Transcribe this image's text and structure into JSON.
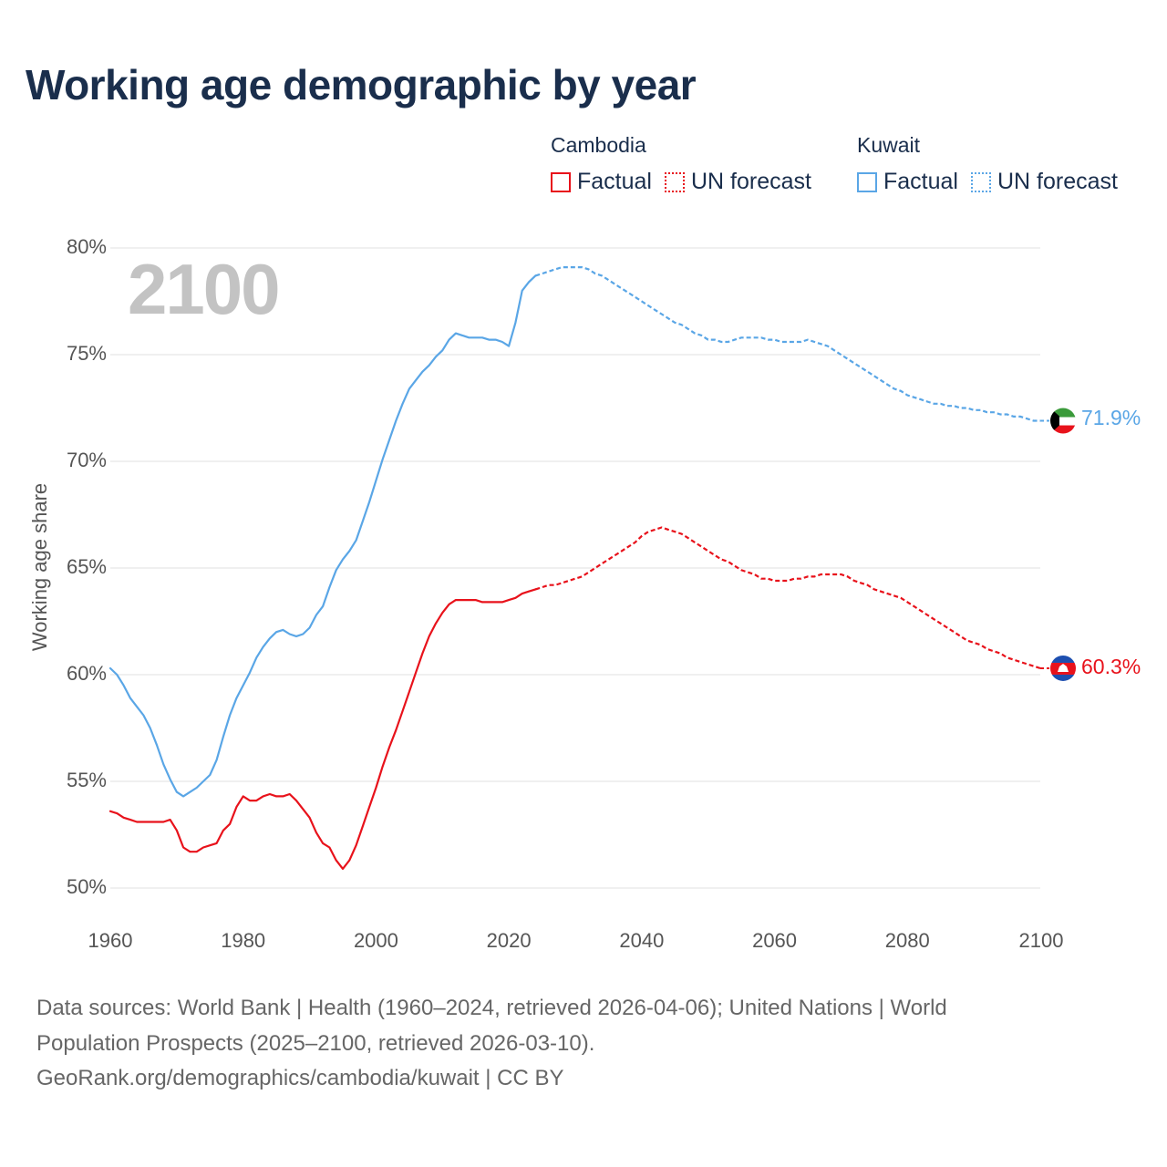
{
  "title": "Working age demographic by year",
  "current_year_label": "2100",
  "legend": {
    "groups": [
      {
        "country": "Cambodia",
        "factual": "Factual",
        "forecast": "UN forecast",
        "color": "#e8121b"
      },
      {
        "country": "Kuwait",
        "factual": "Factual",
        "forecast": "UN forecast",
        "color": "#5aa6e6"
      }
    ]
  },
  "end_labels": {
    "cambodia": "60.3%",
    "kuwait": "71.9%"
  },
  "source_lines": [
    "Data sources: World Bank | Health (1960–2024, retrieved 2026-04-06); United Nations | World",
    "Population Prospects (2025–2100, retrieved 2026-03-10).",
    "GeoRank.org/demographics/cambodia/kuwait | CC BY"
  ],
  "colors": {
    "cambodia": "#e8121b",
    "kuwait": "#5aa6e6",
    "title": "#1a2e4c",
    "grid": "#e6e6e6"
  },
  "icons": {
    "cambodia": "cambodia-flag-icon",
    "kuwait": "kuwait-flag-icon"
  },
  "chart_data": {
    "type": "line",
    "title": "Working age demographic by year",
    "xlabel": "",
    "ylabel": "Working age share",
    "xlim": [
      1960,
      2103
    ],
    "ylim": [
      50,
      80
    ],
    "x_ticks": [
      1960,
      1980,
      2000,
      2020,
      2040,
      2060,
      2080,
      2100
    ],
    "y_ticks": [
      50,
      55,
      60,
      65,
      70,
      75,
      80
    ],
    "y_tick_labels": [
      "50%",
      "55%",
      "60%",
      "65%",
      "70%",
      "75%",
      "80%"
    ],
    "x_tick_labels": [
      "1960",
      "1980",
      "2000",
      "2020",
      "2040",
      "2060",
      "2080",
      "2100"
    ],
    "factual_range": [
      1960,
      2024
    ],
    "forecast_range": [
      2024,
      2100
    ],
    "series": [
      {
        "name": "Cambodia",
        "points": [
          [
            1960,
            53.6
          ],
          [
            1961,
            53.5
          ],
          [
            1962,
            53.3
          ],
          [
            1963,
            53.2
          ],
          [
            1964,
            53.1
          ],
          [
            1965,
            53.1
          ],
          [
            1966,
            53.1
          ],
          [
            1967,
            53.1
          ],
          [
            1968,
            53.1
          ],
          [
            1969,
            53.2
          ],
          [
            1970,
            52.7
          ],
          [
            1971,
            51.9
          ],
          [
            1972,
            51.7
          ],
          [
            1973,
            51.7
          ],
          [
            1974,
            51.9
          ],
          [
            1975,
            52.0
          ],
          [
            1976,
            52.1
          ],
          [
            1977,
            52.7
          ],
          [
            1978,
            53.0
          ],
          [
            1979,
            53.8
          ],
          [
            1980,
            54.3
          ],
          [
            1981,
            54.1
          ],
          [
            1982,
            54.1
          ],
          [
            1983,
            54.3
          ],
          [
            1984,
            54.4
          ],
          [
            1985,
            54.3
          ],
          [
            1986,
            54.3
          ],
          [
            1987,
            54.4
          ],
          [
            1988,
            54.1
          ],
          [
            1989,
            53.7
          ],
          [
            1990,
            53.3
          ],
          [
            1991,
            52.6
          ],
          [
            1992,
            52.1
          ],
          [
            1993,
            51.9
          ],
          [
            1994,
            51.3
          ],
          [
            1995,
            50.9
          ],
          [
            1996,
            51.3
          ],
          [
            1997,
            52.0
          ],
          [
            1998,
            52.9
          ],
          [
            1999,
            53.8
          ],
          [
            2000,
            54.7
          ],
          [
            2001,
            55.7
          ],
          [
            2002,
            56.6
          ],
          [
            2003,
            57.4
          ],
          [
            2004,
            58.3
          ],
          [
            2005,
            59.2
          ],
          [
            2006,
            60.1
          ],
          [
            2007,
            61.0
          ],
          [
            2008,
            61.8
          ],
          [
            2009,
            62.4
          ],
          [
            2010,
            62.9
          ],
          [
            2011,
            63.3
          ],
          [
            2012,
            63.5
          ],
          [
            2013,
            63.5
          ],
          [
            2014,
            63.5
          ],
          [
            2015,
            63.5
          ],
          [
            2016,
            63.4
          ],
          [
            2017,
            63.4
          ],
          [
            2018,
            63.4
          ],
          [
            2019,
            63.4
          ],
          [
            2020,
            63.5
          ],
          [
            2021,
            63.6
          ],
          [
            2022,
            63.8
          ],
          [
            2023,
            63.9
          ],
          [
            2024,
            64.0
          ],
          [
            2025,
            64.1
          ],
          [
            2026,
            64.2
          ],
          [
            2027,
            64.2
          ],
          [
            2028,
            64.3
          ],
          [
            2029,
            64.4
          ],
          [
            2030,
            64.5
          ],
          [
            2031,
            64.6
          ],
          [
            2032,
            64.8
          ],
          [
            2033,
            65.0
          ],
          [
            2034,
            65.2
          ],
          [
            2035,
            65.4
          ],
          [
            2036,
            65.6
          ],
          [
            2037,
            65.8
          ],
          [
            2038,
            66.0
          ],
          [
            2039,
            66.2
          ],
          [
            2040,
            66.5
          ],
          [
            2041,
            66.7
          ],
          [
            2042,
            66.8
          ],
          [
            2043,
            66.9
          ],
          [
            2044,
            66.8
          ],
          [
            2045,
            66.7
          ],
          [
            2046,
            66.6
          ],
          [
            2047,
            66.4
          ],
          [
            2048,
            66.2
          ],
          [
            2049,
            66.0
          ],
          [
            2050,
            65.8
          ],
          [
            2051,
            65.6
          ],
          [
            2052,
            65.4
          ],
          [
            2053,
            65.3
          ],
          [
            2054,
            65.1
          ],
          [
            2055,
            64.9
          ],
          [
            2056,
            64.8
          ],
          [
            2057,
            64.7
          ],
          [
            2058,
            64.5
          ],
          [
            2059,
            64.5
          ],
          [
            2060,
            64.4
          ],
          [
            2061,
            64.4
          ],
          [
            2062,
            64.4
          ],
          [
            2063,
            64.5
          ],
          [
            2064,
            64.5
          ],
          [
            2065,
            64.6
          ],
          [
            2066,
            64.6
          ],
          [
            2067,
            64.7
          ],
          [
            2068,
            64.7
          ],
          [
            2069,
            64.7
          ],
          [
            2070,
            64.7
          ],
          [
            2071,
            64.6
          ],
          [
            2072,
            64.4
          ],
          [
            2073,
            64.3
          ],
          [
            2074,
            64.2
          ],
          [
            2075,
            64.0
          ],
          [
            2076,
            63.9
          ],
          [
            2077,
            63.8
          ],
          [
            2078,
            63.7
          ],
          [
            2079,
            63.6
          ],
          [
            2080,
            63.4
          ],
          [
            2081,
            63.2
          ],
          [
            2082,
            63.0
          ],
          [
            2083,
            62.8
          ],
          [
            2084,
            62.6
          ],
          [
            2085,
            62.4
          ],
          [
            2086,
            62.2
          ],
          [
            2087,
            62.0
          ],
          [
            2088,
            61.8
          ],
          [
            2089,
            61.6
          ],
          [
            2090,
            61.5
          ],
          [
            2091,
            61.4
          ],
          [
            2092,
            61.2
          ],
          [
            2093,
            61.1
          ],
          [
            2094,
            61.0
          ],
          [
            2095,
            60.8
          ],
          [
            2096,
            60.7
          ],
          [
            2097,
            60.6
          ],
          [
            2098,
            60.5
          ],
          [
            2099,
            60.4
          ],
          [
            2100,
            60.3
          ]
        ]
      },
      {
        "name": "Kuwait",
        "points": [
          [
            1960,
            60.3
          ],
          [
            1961,
            60.0
          ],
          [
            1962,
            59.5
          ],
          [
            1963,
            58.9
          ],
          [
            1964,
            58.5
          ],
          [
            1965,
            58.1
          ],
          [
            1966,
            57.5
          ],
          [
            1967,
            56.7
          ],
          [
            1968,
            55.8
          ],
          [
            1969,
            55.1
          ],
          [
            1970,
            54.5
          ],
          [
            1971,
            54.3
          ],
          [
            1972,
            54.5
          ],
          [
            1973,
            54.7
          ],
          [
            1974,
            55.0
          ],
          [
            1975,
            55.3
          ],
          [
            1976,
            56.0
          ],
          [
            1977,
            57.1
          ],
          [
            1978,
            58.1
          ],
          [
            1979,
            58.9
          ],
          [
            1980,
            59.5
          ],
          [
            1981,
            60.1
          ],
          [
            1982,
            60.8
          ],
          [
            1983,
            61.3
          ],
          [
            1984,
            61.7
          ],
          [
            1985,
            62.0
          ],
          [
            1986,
            62.1
          ],
          [
            1987,
            61.9
          ],
          [
            1988,
            61.8
          ],
          [
            1989,
            61.9
          ],
          [
            1990,
            62.2
          ],
          [
            1991,
            62.8
          ],
          [
            1992,
            63.2
          ],
          [
            1993,
            64.1
          ],
          [
            1994,
            64.9
          ],
          [
            1995,
            65.4
          ],
          [
            1996,
            65.8
          ],
          [
            1997,
            66.3
          ],
          [
            1998,
            67.2
          ],
          [
            1999,
            68.1
          ],
          [
            2000,
            69.1
          ],
          [
            2001,
            70.1
          ],
          [
            2002,
            71.0
          ],
          [
            2003,
            71.9
          ],
          [
            2004,
            72.7
          ],
          [
            2005,
            73.4
          ],
          [
            2006,
            73.8
          ],
          [
            2007,
            74.2
          ],
          [
            2008,
            74.5
          ],
          [
            2009,
            74.9
          ],
          [
            2010,
            75.2
          ],
          [
            2011,
            75.7
          ],
          [
            2012,
            76.0
          ],
          [
            2013,
            75.9
          ],
          [
            2014,
            75.8
          ],
          [
            2015,
            75.8
          ],
          [
            2016,
            75.8
          ],
          [
            2017,
            75.7
          ],
          [
            2018,
            75.7
          ],
          [
            2019,
            75.6
          ],
          [
            2020,
            75.4
          ],
          [
            2021,
            76.5
          ],
          [
            2022,
            78.0
          ],
          [
            2023,
            78.4
          ],
          [
            2024,
            78.7
          ],
          [
            2025,
            78.8
          ],
          [
            2026,
            78.9
          ],
          [
            2027,
            79.0
          ],
          [
            2028,
            79.1
          ],
          [
            2029,
            79.1
          ],
          [
            2030,
            79.1
          ],
          [
            2031,
            79.1
          ],
          [
            2032,
            79.0
          ],
          [
            2033,
            78.8
          ],
          [
            2034,
            78.7
          ],
          [
            2035,
            78.5
          ],
          [
            2036,
            78.3
          ],
          [
            2037,
            78.1
          ],
          [
            2038,
            77.9
          ],
          [
            2039,
            77.7
          ],
          [
            2040,
            77.5
          ],
          [
            2041,
            77.3
          ],
          [
            2042,
            77.1
          ],
          [
            2043,
            76.9
          ],
          [
            2044,
            76.7
          ],
          [
            2045,
            76.5
          ],
          [
            2046,
            76.4
          ],
          [
            2047,
            76.2
          ],
          [
            2048,
            76.0
          ],
          [
            2049,
            75.9
          ],
          [
            2050,
            75.7
          ],
          [
            2051,
            75.7
          ],
          [
            2052,
            75.6
          ],
          [
            2053,
            75.6
          ],
          [
            2054,
            75.7
          ],
          [
            2055,
            75.8
          ],
          [
            2056,
            75.8
          ],
          [
            2057,
            75.8
          ],
          [
            2058,
            75.8
          ],
          [
            2059,
            75.7
          ],
          [
            2060,
            75.7
          ],
          [
            2061,
            75.6
          ],
          [
            2062,
            75.6
          ],
          [
            2063,
            75.6
          ],
          [
            2064,
            75.6
          ],
          [
            2065,
            75.7
          ],
          [
            2066,
            75.6
          ],
          [
            2067,
            75.5
          ],
          [
            2068,
            75.4
          ],
          [
            2069,
            75.2
          ],
          [
            2070,
            75.0
          ],
          [
            2071,
            74.8
          ],
          [
            2072,
            74.6
          ],
          [
            2073,
            74.4
          ],
          [
            2074,
            74.2
          ],
          [
            2075,
            74.0
          ],
          [
            2076,
            73.8
          ],
          [
            2077,
            73.6
          ],
          [
            2078,
            73.4
          ],
          [
            2079,
            73.3
          ],
          [
            2080,
            73.1
          ],
          [
            2081,
            73.0
          ],
          [
            2082,
            72.9
          ],
          [
            2083,
            72.8
          ],
          [
            2084,
            72.7
          ],
          [
            2085,
            72.7
          ],
          [
            2086,
            72.6
          ],
          [
            2087,
            72.6
          ],
          [
            2088,
            72.5
          ],
          [
            2089,
            72.5
          ],
          [
            2090,
            72.4
          ],
          [
            2091,
            72.4
          ],
          [
            2092,
            72.3
          ],
          [
            2093,
            72.3
          ],
          [
            2094,
            72.2
          ],
          [
            2095,
            72.2
          ],
          [
            2096,
            72.1
          ],
          [
            2097,
            72.1
          ],
          [
            2098,
            72.0
          ],
          [
            2099,
            71.9
          ],
          [
            2100,
            71.9
          ]
        ]
      }
    ]
  }
}
